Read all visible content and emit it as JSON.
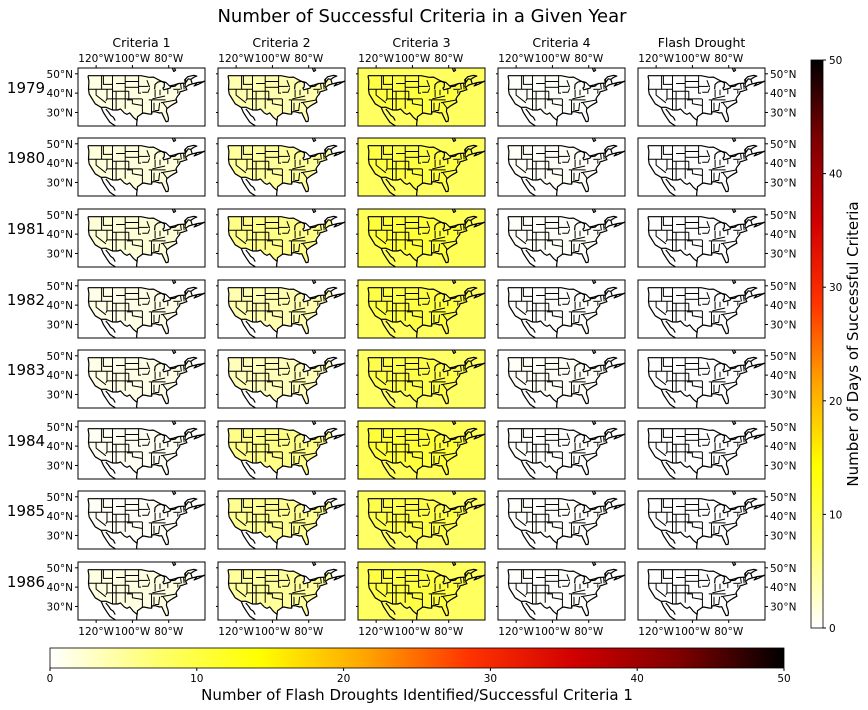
{
  "chart_data": {
    "type": "heatmap",
    "title": "Number of Successful Criteria in a Given Year",
    "columns": [
      "Criteria 1",
      "Criteria 2",
      "Criteria 3",
      "Criteria 4",
      "Flash Drought"
    ],
    "rows": [
      "1979",
      "1980",
      "1981",
      "1982",
      "1983",
      "1984",
      "1985",
      "1986"
    ],
    "map_x_ticks": [
      "120°W",
      "100°W",
      "80°W"
    ],
    "map_y_ticks": [
      "50°N",
      "40°N",
      "30°N"
    ],
    "map_x_ticks_top_values": [
      -120,
      -100,
      -80
    ],
    "map_y_ticks_values": [
      50,
      40,
      30
    ],
    "panel_mean_values": [
      [
        1.5,
        4.0,
        10.0,
        0.3,
        0.0
      ],
      [
        1.8,
        5.0,
        10.0,
        0.4,
        0.0
      ],
      [
        2.0,
        6.0,
        10.5,
        0.3,
        0.0
      ],
      [
        1.2,
        4.0,
        10.0,
        0.2,
        0.0
      ],
      [
        1.2,
        3.5,
        9.5,
        0.4,
        0.0
      ],
      [
        0.6,
        6.0,
        10.5,
        0.2,
        0.0
      ],
      [
        0.4,
        5.5,
        9.5,
        0.2,
        0.0
      ],
      [
        1.5,
        5.0,
        10.0,
        0.2,
        0.0
      ]
    ],
    "colorbar_right": {
      "label": "Number of Days of Successful Criteria",
      "range": [
        0,
        50
      ],
      "ticks": [
        "0",
        "10",
        "20",
        "30",
        "40",
        "50"
      ],
      "tick_values": [
        0,
        10,
        20,
        30,
        40,
        50
      ],
      "colormap": "hot_r"
    },
    "colorbar_bottom": {
      "label": "Number of Flash Droughts Identified/Successful Criteria 1",
      "range": [
        0,
        50
      ],
      "ticks": [
        "0",
        "10",
        "20",
        "30",
        "40",
        "50"
      ],
      "tick_values": [
        0,
        10,
        20,
        30,
        40,
        50
      ],
      "colormap": "hot_r"
    },
    "colormap_stops": [
      "#ffffff",
      "#ffff70",
      "#ffff00",
      "#ffa500",
      "#ff3300",
      "#d00000",
      "#800000",
      "#000000"
    ]
  }
}
